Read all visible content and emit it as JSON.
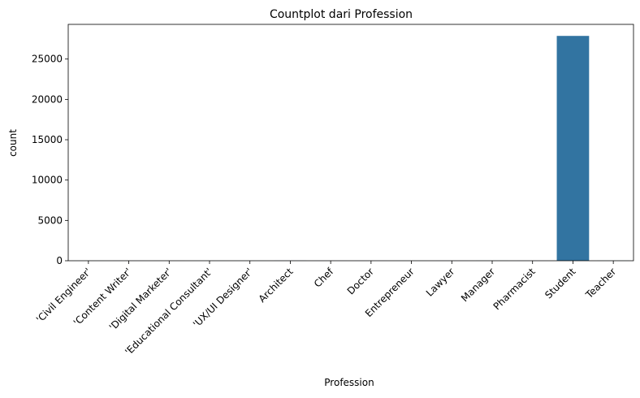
{
  "chart_data": {
    "type": "bar",
    "title": "Countplot dari Profession",
    "xlabel": "Profession",
    "ylabel": "count",
    "categories": [
      "'Civil Engineer'",
      "'Content Writer'",
      "'Digital Marketer'",
      "'Educational Consultant'",
      "'UX/UI Designer'",
      "Architect",
      "Chef",
      "Doctor",
      "Entrepreneur",
      "Lawyer",
      "Manager",
      "Pharmacist",
      "Student",
      "Teacher"
    ],
    "values": [
      1,
      2,
      3,
      1,
      1,
      8,
      2,
      2,
      1,
      2,
      5,
      2,
      27870,
      6
    ],
    "ylim": [
      0,
      29300
    ],
    "yticks": [
      0,
      5000,
      10000,
      15000,
      20000,
      25000
    ],
    "grid": false,
    "bar_color": "#3274a1"
  }
}
